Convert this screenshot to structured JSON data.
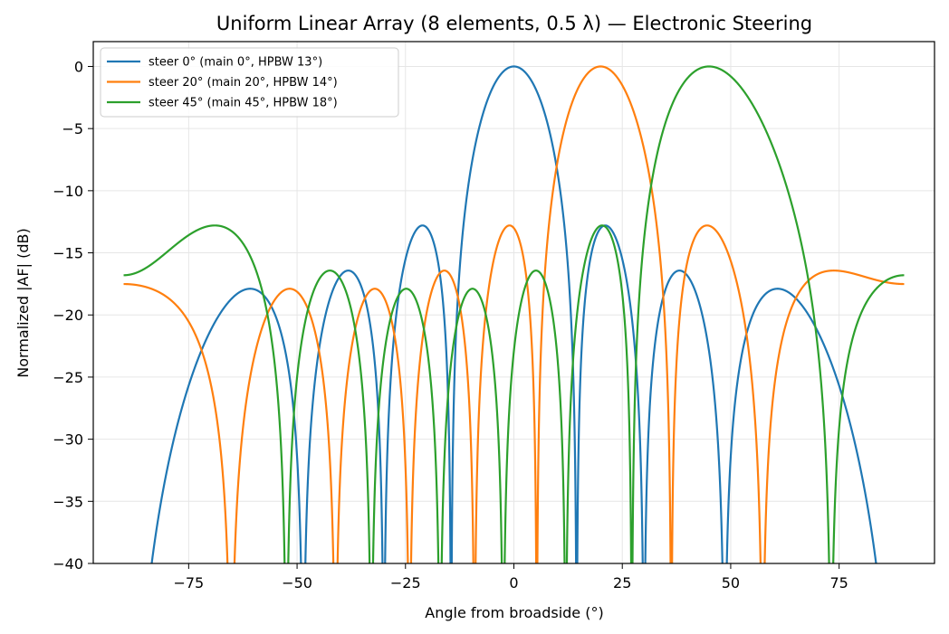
{
  "chart_data": {
    "type": "line",
    "title": "Uniform Linear Array (8 elements, 0.5 λ) — Electronic Steering",
    "xlabel": "Angle from broadside (°)",
    "ylabel": "Normalized |AF| (dB)",
    "xlim": [
      -97,
      97
    ],
    "ylim": [
      -40,
      2
    ],
    "x_range": [
      -90,
      90
    ],
    "xticks": [
      -75,
      -50,
      -25,
      0,
      25,
      50,
      75
    ],
    "xtick_labels": [
      "−75",
      "−50",
      "−25",
      "0",
      "25",
      "50",
      "75"
    ],
    "yticks": [
      0,
      -5,
      -10,
      -15,
      -20,
      -25,
      -30,
      -35,
      -40
    ],
    "ytick_labels": [
      "0",
      "−5",
      "−10",
      "−15",
      "−20",
      "−25",
      "−30",
      "−35",
      "−40"
    ],
    "grid": true,
    "legend_position": "top-left",
    "array": {
      "elements": 8,
      "spacing_wavelengths": 0.5
    },
    "series": [
      {
        "name": "steer 0° (main 0°, HPBW 13°)",
        "steer_deg": 0,
        "color": "#1f77b4"
      },
      {
        "name": "steer 20° (main 20°, HPBW 14°)",
        "steer_deg": 20,
        "color": "#ff7f0e"
      },
      {
        "name": "steer 45° (main 45°, HPBW 18°)",
        "steer_deg": 45,
        "color": "#2ca02c"
      }
    ]
  }
}
